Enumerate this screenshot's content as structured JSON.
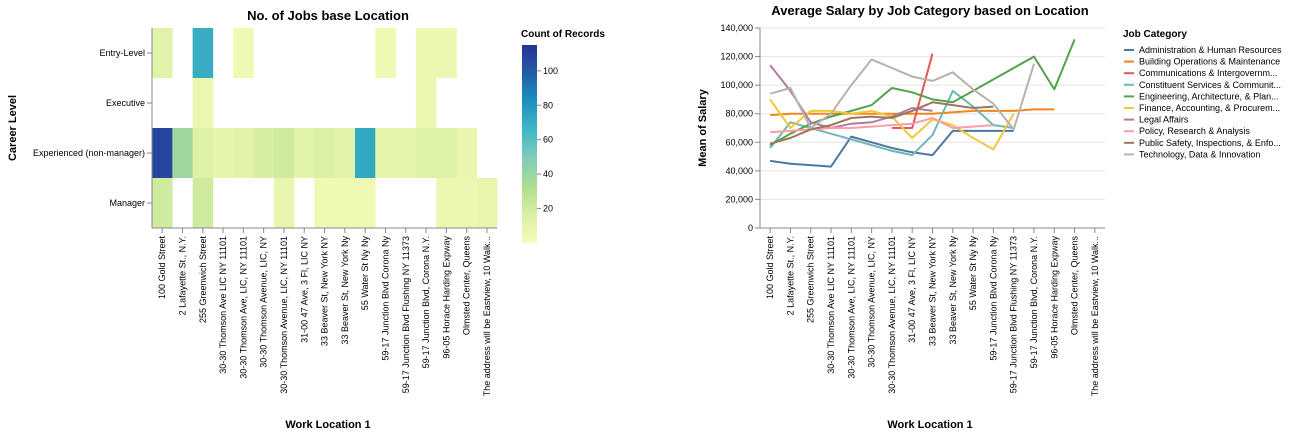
{
  "chart_data": [
    {
      "type": "heatmap",
      "title": "No. of Jobs base Location",
      "xlabel": "Work Location 1",
      "ylabel": "Career Level",
      "x_categories": [
        "100 Gold Street",
        "2 Lafayette St., N.Y.",
        "255 Greenwich Street",
        "30-30 Thomson Ave LIC NY 11101",
        "30-30 Thomson Ave, LIC, NY 11101",
        "30-30 Thomson Avenue, LIC, NY",
        "30-30 Thomson Avenue, LIC, NY 11101",
        "31-00 47 Ave, 3 Fl, LIC NY",
        "33 Beaver St, New York NY",
        "33 Beaver St, New York Ny",
        "55 Water St Ny Ny",
        "59-17 Junction Blvd Corona Ny",
        "59-17 Junction Blvd Flushing NY 11373",
        "59-17 Junction Blvd, Corona N.Y.",
        "96-05 Horace Harding Expway",
        "Olmsted Center, Queens",
        "The address will be Eastview, 10 Walk..."
      ],
      "y_categories": [
        "Entry-Level",
        "Executive",
        "Experienced (non-manager)",
        "Manager"
      ],
      "values": [
        [
          12,
          null,
          70,
          null,
          4,
          null,
          null,
          null,
          null,
          null,
          null,
          4,
          null,
          6,
          6,
          null,
          null
        ],
        [
          null,
          null,
          6,
          null,
          null,
          null,
          null,
          null,
          null,
          null,
          null,
          null,
          null,
          6,
          null,
          null,
          null
        ],
        [
          108,
          38,
          14,
          10,
          12,
          18,
          20,
          12,
          16,
          12,
          72,
          10,
          10,
          14,
          14,
          8,
          null
        ],
        [
          20,
          null,
          20,
          null,
          null,
          null,
          8,
          null,
          4,
          4,
          4,
          null,
          null,
          null,
          6,
          6,
          8
        ]
      ],
      "legend": {
        "title": "Count of Records",
        "ticks": [
          20,
          40,
          60,
          80,
          100
        ],
        "domain": [
          0,
          115
        ]
      },
      "colors": {
        "scale": [
          "#f7fcb9",
          "#d9f0a3",
          "#addd8e",
          "#7fcdbb",
          "#41b6c4",
          "#1d91c0",
          "#225ea8",
          "#253494"
        ]
      }
    },
    {
      "type": "line",
      "title": "Average Salary by Job Category based on Location",
      "xlabel": "Work Location 1",
      "ylabel": "Mean of Salary",
      "categories": [
        "100 Gold Street",
        "2 Lafayette St., N.Y.",
        "255 Greenwich Street",
        "30-30 Thomson Ave LIC NY 11101",
        "30-30 Thomson Ave, LIC, NY 11101",
        "30-30 Thomson Avenue, LIC, NY",
        "30-30 Thomson Avenue, LIC, NY 11101",
        "31-00 47 Ave, 3 Fl, LIC NY",
        "33 Beaver St, New York NY",
        "33 Beaver St, New York Ny",
        "55 Water St Ny Ny",
        "59-17 Junction Blvd Corona Ny",
        "59-17 Junction Blvd Flushing NY 11373",
        "59-17 Junction Blvd, Corona N.Y.",
        "96-05 Horace Harding Expway",
        "Olmsted Center, Queens",
        "The address will be Eastview, 10 Walk..."
      ],
      "ylim": [
        0,
        140000
      ],
      "yticks": [
        "0",
        "20,000",
        "40,000",
        "60,000",
        "80,000",
        "100,000",
        "120,000",
        "140,000"
      ],
      "legend": {
        "title": "Job Category",
        "placement": "right"
      },
      "series": [
        {
          "name": "Administration & Human Resources",
          "color": "#4c78a8",
          "values": [
            47000,
            45000,
            44000,
            43000,
            64000,
            60000,
            56000,
            53000,
            51000,
            68000,
            68000,
            68000,
            68000,
            null,
            null,
            null,
            null
          ]
        },
        {
          "name": "Building Operations & Maintenance",
          "color": "#f58518",
          "values": [
            79000,
            80000,
            80000,
            80000,
            80000,
            80000,
            80000,
            80000,
            80000,
            81000,
            82000,
            82000,
            82000,
            83000,
            83000,
            null,
            null
          ]
        },
        {
          "name": "Communications & Intergovernm...",
          "color": "#e45756",
          "values": [
            null,
            null,
            null,
            null,
            null,
            null,
            70000,
            70000,
            122000,
            null,
            null,
            null,
            null,
            null,
            null,
            null,
            null
          ]
        },
        {
          "name": "Constituent Services & Communit...",
          "color": "#72b7b2",
          "values": [
            56000,
            74000,
            70000,
            66000,
            62000,
            58000,
            54000,
            51000,
            65000,
            96000,
            85000,
            72000,
            70000,
            null,
            null,
            null,
            null
          ]
        },
        {
          "name": "Engineering, Architecture, & Plan...",
          "color": "#54a24b",
          "values": [
            58000,
            66000,
            73000,
            78000,
            82000,
            86000,
            98000,
            95000,
            90000,
            88000,
            96000,
            104000,
            112000,
            120000,
            97000,
            132000,
            null
          ]
        },
        {
          "name": "Finance, Accounting, & Procurem...",
          "color": "#eeca3b",
          "values": [
            90000,
            70000,
            82000,
            82000,
            80000,
            82000,
            78000,
            63000,
            76000,
            72000,
            63000,
            55000,
            80000,
            null,
            null,
            null,
            null
          ]
        },
        {
          "name": "Legal Affairs",
          "color": "#b279a2",
          "values": [
            114000,
            96000,
            74000,
            70000,
            73000,
            74000,
            78000,
            84000,
            82000,
            null,
            null,
            null,
            null,
            null,
            null,
            null,
            null
          ]
        },
        {
          "name": "Policy, Research & Analysis",
          "color": "#ff9da6",
          "values": [
            67000,
            68000,
            69000,
            70000,
            70000,
            71000,
            72000,
            73000,
            77000,
            70000,
            71000,
            72000,
            null,
            null,
            null,
            null,
            null
          ]
        },
        {
          "name": "Public Safety, Inspections, & Enfo...",
          "color": "#9d755d",
          "values": [
            59000,
            63000,
            69000,
            72000,
            77000,
            78000,
            77000,
            82000,
            88000,
            86000,
            84000,
            85000,
            null,
            null,
            null,
            null,
            null
          ]
        },
        {
          "name": "Technology, Data & Innovation",
          "color": "#bab0ac",
          "values": [
            94000,
            98000,
            70000,
            80000,
            100000,
            118000,
            112000,
            106000,
            103000,
            109000,
            97000,
            87000,
            69000,
            115000,
            null,
            null,
            null
          ]
        }
      ]
    }
  ]
}
